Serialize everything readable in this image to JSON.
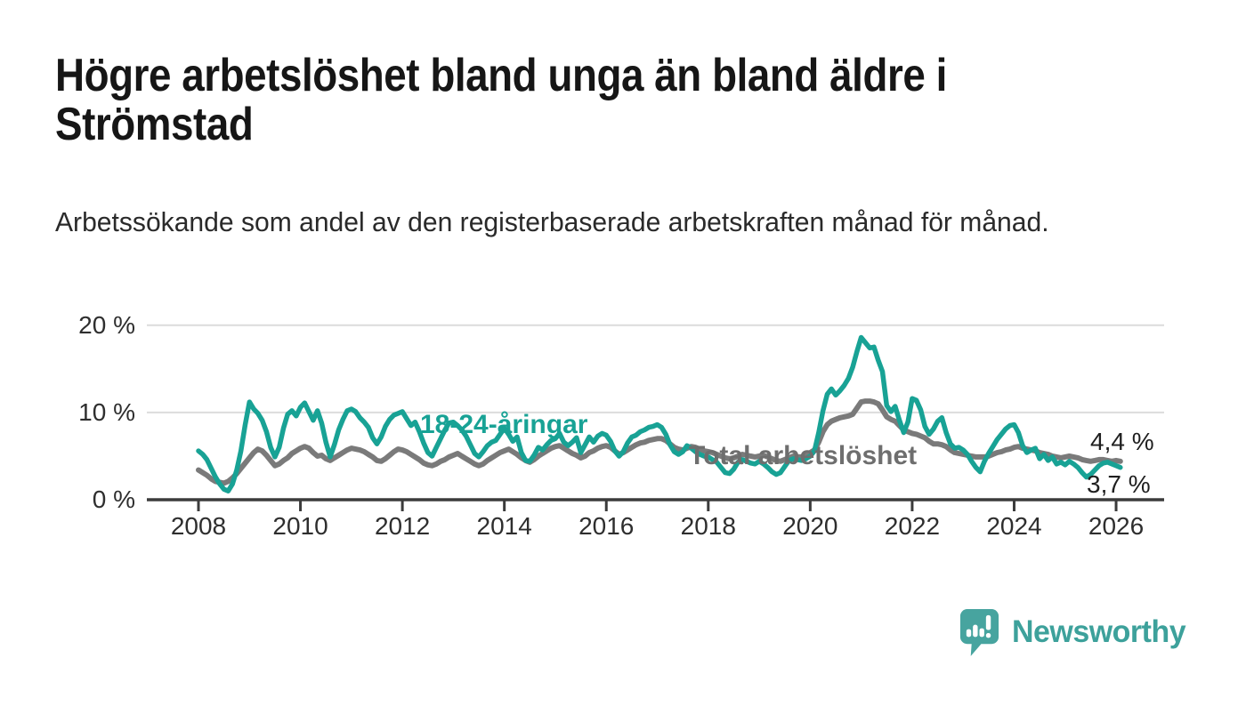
{
  "header": {
    "title_line1": "Högre arbetslöshet bland unga än bland äldre i",
    "title_line2": "Strömstad",
    "subtitle": "Arbetssökande som andel av den registerbaserade arbetskraften månad för månad."
  },
  "chart_data": {
    "type": "line",
    "unit": "percent",
    "x_start": {
      "year": 2008,
      "month": 1
    },
    "x_end": {
      "year": 2026,
      "month": 2
    },
    "x_tick_labels": [
      "2008",
      "2010",
      "2012",
      "2014",
      "2016",
      "2018",
      "2020",
      "2022",
      "2024",
      "2026"
    ],
    "y_ticks": [
      {
        "value": 0,
        "label": "0 %"
      },
      {
        "value": 10,
        "label": "10 %"
      },
      {
        "value": 20,
        "label": "20 %"
      }
    ],
    "ylim": [
      0,
      21
    ],
    "grid": "horizontal",
    "colors": {
      "young": "#18a295",
      "total": "#7a7a7a",
      "axis": "#3b3b3b",
      "grid": "#dcdcdc"
    },
    "series": [
      {
        "name": "total-arbetsloshet",
        "label": "Total arbetslöshet",
        "color": "#7a7a7a",
        "end_label": "4,4 %",
        "values": [
          3.4,
          3.1,
          2.8,
          2.4,
          2.1,
          2.0,
          1.9,
          2.1,
          2.5,
          3.0,
          3.6,
          4.2,
          4.8,
          5.4,
          5.8,
          5.6,
          5.1,
          4.5,
          3.9,
          4.1,
          4.5,
          4.8,
          5.3,
          5.6,
          5.9,
          6.1,
          5.9,
          5.4,
          5.0,
          5.1,
          4.7,
          4.5,
          4.8,
          5.1,
          5.4,
          5.7,
          5.9,
          5.8,
          5.7,
          5.5,
          5.2,
          4.9,
          4.5,
          4.4,
          4.7,
          5.1,
          5.5,
          5.8,
          5.7,
          5.5,
          5.2,
          4.9,
          4.6,
          4.2,
          4.0,
          3.9,
          4.1,
          4.4,
          4.6,
          4.9,
          5.1,
          5.3,
          5.0,
          4.7,
          4.4,
          4.1,
          3.9,
          4.1,
          4.5,
          4.8,
          5.1,
          5.4,
          5.6,
          5.8,
          5.5,
          5.2,
          4.8,
          4.5,
          4.3,
          4.6,
          5.0,
          5.3,
          5.6,
          5.9,
          6.1,
          6.2,
          5.9,
          5.6,
          5.3,
          5.1,
          4.8,
          5.0,
          5.4,
          5.6,
          5.9,
          6.1,
          6.2,
          6.0,
          5.6,
          5.2,
          5.4,
          5.7,
          6.0,
          6.3,
          6.5,
          6.6,
          6.8,
          6.9,
          7.0,
          7.0,
          6.8,
          6.4,
          6.0,
          5.8,
          5.7,
          5.9,
          6.1,
          6.0,
          5.8,
          5.6,
          5.5,
          5.4,
          5.2,
          5.0,
          4.8,
          4.7,
          4.8,
          5.0,
          5.2,
          5.1,
          5.0,
          4.9,
          5.0,
          5.1,
          4.9,
          4.7,
          4.5,
          4.4,
          4.6,
          4.8,
          5.0,
          4.9,
          4.9,
          5.2,
          5.4,
          5.7,
          6.6,
          7.8,
          8.6,
          9.0,
          9.2,
          9.4,
          9.5,
          9.6,
          9.8,
          10.5,
          11.2,
          11.3,
          11.3,
          11.2,
          11.0,
          10.3,
          9.5,
          9.2,
          9.0,
          8.5,
          8.0,
          7.8,
          7.6,
          7.5,
          7.3,
          7.1,
          6.7,
          6.4,
          6.4,
          6.3,
          6.1,
          5.7,
          5.4,
          5.3,
          5.2,
          5.1,
          5.0,
          4.9,
          4.9,
          4.9,
          5.0,
          5.2,
          5.4,
          5.5,
          5.7,
          5.8,
          6.0,
          6.1,
          5.9,
          5.8,
          5.7,
          5.6,
          5.4,
          5.3,
          5.2,
          5.0,
          4.9,
          4.8,
          4.9,
          5.0,
          4.9,
          4.8,
          4.6,
          4.5,
          4.4,
          4.5,
          4.6,
          4.6,
          4.5,
          4.4,
          4.5,
          4.4
        ]
      },
      {
        "name": "18-24-aringar",
        "label": "18-24-åringar",
        "color": "#18a295",
        "end_label": "3,7 %",
        "values": [
          5.6,
          5.2,
          4.6,
          3.6,
          2.6,
          1.8,
          1.2,
          1.0,
          1.8,
          3.4,
          5.6,
          8.6,
          11.2,
          10.4,
          9.9,
          9.1,
          7.8,
          6.0,
          4.9,
          6.0,
          8.2,
          9.8,
          10.2,
          9.6,
          10.6,
          11.1,
          10.1,
          9.1,
          10.2,
          8.8,
          6.6,
          4.9,
          6.3,
          8.0,
          9.2,
          10.2,
          10.4,
          10.1,
          9.4,
          8.9,
          8.3,
          7.1,
          6.4,
          7.2,
          8.4,
          9.2,
          9.7,
          9.9,
          10.1,
          9.3,
          8.5,
          8.9,
          7.8,
          6.5,
          5.4,
          5.0,
          6.0,
          7.0,
          8.0,
          8.8,
          8.9,
          8.5,
          8.0,
          7.3,
          6.3,
          5.3,
          4.9,
          5.5,
          6.2,
          6.6,
          6.8,
          7.5,
          8.2,
          7.5,
          6.7,
          7.2,
          5.4,
          4.5,
          4.4,
          5.1,
          6.0,
          5.7,
          6.3,
          6.8,
          7.0,
          7.6,
          6.6,
          6.2,
          6.6,
          7.1,
          5.4,
          6.3,
          7.2,
          6.6,
          7.3,
          7.6,
          7.4,
          6.7,
          5.6,
          5.0,
          5.5,
          6.5,
          7.2,
          7.4,
          7.8,
          8.0,
          8.3,
          8.4,
          8.6,
          8.3,
          7.5,
          6.3,
          5.5,
          5.2,
          5.5,
          6.2,
          5.9,
          5.5,
          5.2,
          5.0,
          4.9,
          4.6,
          4.3,
          3.7,
          3.1,
          3.0,
          3.5,
          4.3,
          4.6,
          4.4,
          4.2,
          4.1,
          4.4,
          4.1,
          3.7,
          3.2,
          2.9,
          3.1,
          3.8,
          4.5,
          4.7,
          4.6,
          4.5,
          4.7,
          5.0,
          5.6,
          7.7,
          10.2,
          12.1,
          12.7,
          12.0,
          12.5,
          13.1,
          13.9,
          15.2,
          17.0,
          18.6,
          18.0,
          17.4,
          17.5,
          16.0,
          14.7,
          10.8,
          10.1,
          10.7,
          9.1,
          7.7,
          8.9,
          11.6,
          11.4,
          10.3,
          8.4,
          7.5,
          8.1,
          9.0,
          9.4,
          7.7,
          6.4,
          5.9,
          6.0,
          5.7,
          5.2,
          4.4,
          3.7,
          3.2,
          4.4,
          5.3,
          6.1,
          6.9,
          7.5,
          8.1,
          8.5,
          8.6,
          7.7,
          6.2,
          5.4,
          5.7,
          5.9,
          4.7,
          5.2,
          4.5,
          4.9,
          4.1,
          4.3,
          4.0,
          4.4,
          4.1,
          3.7,
          3.1,
          2.6,
          2.9,
          3.4,
          3.9,
          4.2,
          4.3,
          4.1,
          3.9,
          3.7
        ]
      }
    ]
  },
  "footer": {
    "brand": "Newsworthy"
  }
}
